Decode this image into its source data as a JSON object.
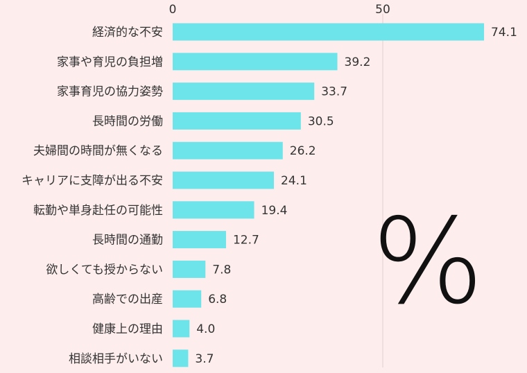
{
  "chart_data": {
    "type": "bar",
    "orientation": "horizontal",
    "categories": [
      "経済的な不安",
      "家事や育児の負担増",
      "家事育児の協力姿勢",
      "長時間の労働",
      "夫婦間の時間が無くなる",
      "キャリアに支障が出る不安",
      "転勤や単身赴任の可能性",
      "長時間の通勤",
      "欲しくても授からない",
      "高齢での出産",
      "健康上の理由",
      "相談相手がいない"
    ],
    "values": [
      74.1,
      39.2,
      33.7,
      30.5,
      26.2,
      24.1,
      19.4,
      12.7,
      7.8,
      6.8,
      4.0,
      3.7
    ],
    "value_labels": [
      "74.1",
      "39.2",
      "33.7",
      "30.5",
      "26.2",
      "24.1",
      "19.4",
      "12.7",
      "7.8",
      "6.8",
      "4.0",
      "3.7"
    ],
    "xlim": [
      0,
      100
    ],
    "xticks": [
      0,
      50
    ],
    "xtick_labels": [
      "0",
      "50"
    ],
    "unit": "%",
    "grid": true,
    "bar_color": "#6DE4EA",
    "grid_color": "#E2CFCF",
    "background_color": "#FDEDED"
  }
}
